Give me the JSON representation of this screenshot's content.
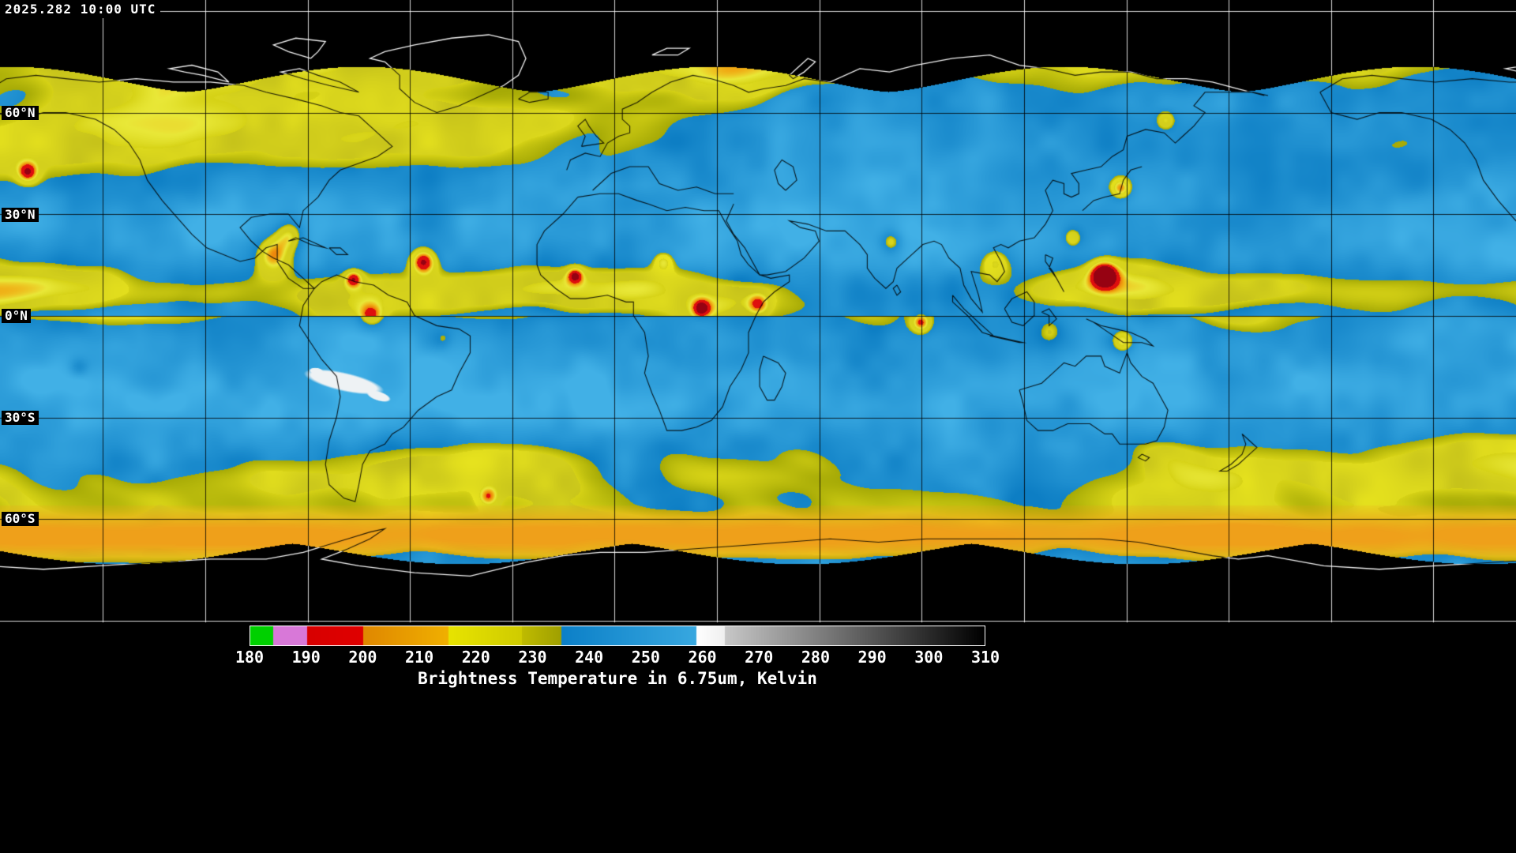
{
  "header": {
    "timestamp": "2025.282 10:00 UTC"
  },
  "map": {
    "lat_labels": [
      {
        "text": "60°N"
      },
      {
        "text": "30°N"
      },
      {
        "text": "0°N"
      },
      {
        "text": "30°S"
      },
      {
        "text": "60°S"
      }
    ]
  },
  "colorbar": {
    "title": "Brightness Temperature in 6.75um, Kelvin",
    "min": 180,
    "max": 310,
    "ticks": [
      "180",
      "190",
      "200",
      "210",
      "220",
      "230",
      "240",
      "250",
      "260",
      "270",
      "280",
      "290",
      "300",
      "310"
    ],
    "segments": [
      {
        "from": 180,
        "to": 184,
        "c1": "#00d000",
        "c2": "#00d000"
      },
      {
        "from": 184,
        "to": 190,
        "c1": "#d878d8",
        "c2": "#d878d8"
      },
      {
        "from": 190,
        "to": 200,
        "c1": "#d80000",
        "c2": "#e00000"
      },
      {
        "from": 200,
        "to": 215,
        "c1": "#e08800",
        "c2": "#f0b000"
      },
      {
        "from": 215,
        "to": 228,
        "c1": "#e8e400",
        "c2": "#d0cc00"
      },
      {
        "from": 228,
        "to": 235,
        "c1": "#c0bc00",
        "c2": "#a0a000"
      },
      {
        "from": 235,
        "to": 259,
        "c1": "#0c80c8",
        "c2": "#38a8e0"
      },
      {
        "from": 259,
        "to": 264,
        "c1": "#ffffff",
        "c2": "#f0f0f0"
      },
      {
        "from": 264,
        "to": 310,
        "c1": "#c8c8c8",
        "c2": "#000000"
      }
    ]
  },
  "palette": {
    "background": "#000000",
    "ocean_blue_dark": "#0d7ec4",
    "ocean_blue_light": "#41b0e6",
    "cloud_olive": "#a6aa06",
    "cloud_yellow": "#d6d216",
    "cloud_yellow_bright": "#e9e838",
    "cloud_orange": "#f0ac14",
    "cloud_red": "#de0e0e",
    "warm_white": "#eef2f4",
    "grid_on_data": "#000000",
    "grid_on_space": "#ffffff",
    "text": "#ffffff"
  }
}
